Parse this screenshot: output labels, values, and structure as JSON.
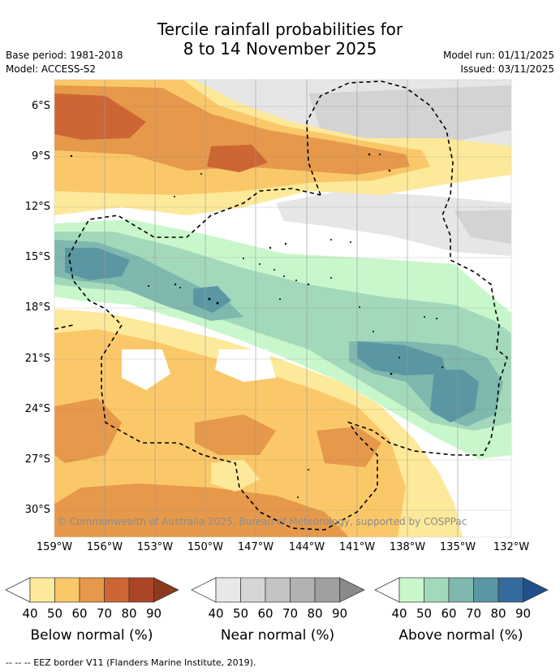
{
  "title": {
    "line1": "Tercile rainfall probabilities for",
    "line2": "8 to 14 November 2025"
  },
  "meta": {
    "base_period": "Base period: 1981-2018",
    "model": "Model: ACCESS-S2",
    "model_run": "Model run: 01/11/2025",
    "issued": "Issued: 03/11/2025"
  },
  "map": {
    "copyright": "© Commonwealth of Australia 2025, Bureau of Meteorology, supported by COSPPac",
    "lat_labels": [
      "6°S",
      "9°S",
      "12°S",
      "15°S",
      "18°S",
      "21°S",
      "24°S",
      "27°S",
      "30°S"
    ],
    "lon_labels": [
      "159°W",
      "156°W",
      "153°W",
      "150°W",
      "147°W",
      "144°W",
      "141°W",
      "138°W",
      "135°W",
      "132°W"
    ]
  },
  "legend": {
    "ticks": [
      "40",
      "50",
      "60",
      "70",
      "80",
      "90"
    ],
    "below": {
      "title": "Below normal (%)",
      "colors": [
        "#ffffff",
        "#fde99a",
        "#fbc869",
        "#e6994a",
        "#cd6634",
        "#ab4528",
        "#8b3a1e"
      ]
    },
    "near": {
      "title": "Near normal (%)",
      "colors": [
        "#ffffff",
        "#e8e8e8",
        "#d6d6d6",
        "#c4c4c4",
        "#b2b2b2",
        "#a0a0a0",
        "#8a8a8a"
      ]
    },
    "above": {
      "title": "Above normal (%)",
      "colors": [
        "#ffffff",
        "#c9f7cc",
        "#a3d9bb",
        "#7fb8ae",
        "#5b97a3",
        "#356a9e",
        "#21508a"
      ]
    }
  },
  "footnote": "--  --  -- EEZ border V11 (Flanders Marine Institute, 2019)."
}
